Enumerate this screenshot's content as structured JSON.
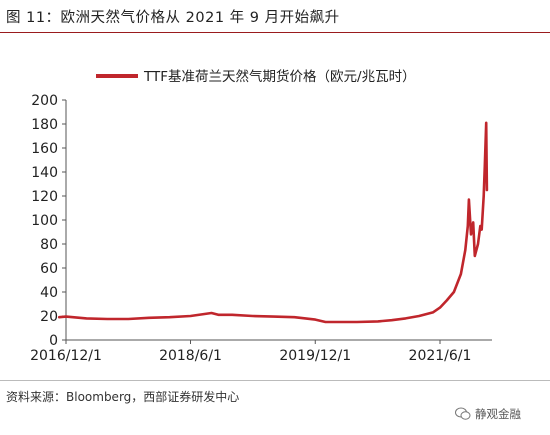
{
  "figure_title": "图 11：欧洲天然气价格从 2021 年 9 月开始飙升",
  "source": "资料来源：Bloomberg，西部证券研发中心",
  "watermark": "静观金融",
  "chart_data": {
    "type": "line",
    "title": "",
    "xlabel": "",
    "ylabel": "",
    "ylim": [
      0,
      200
    ],
    "yticks": [
      0,
      20,
      40,
      60,
      80,
      100,
      120,
      140,
      160,
      180,
      200
    ],
    "xticks": [
      "2016/12/1",
      "2018/6/1",
      "2019/12/1",
      "2021/6/1"
    ],
    "grid": false,
    "legend_position": "top-center",
    "series_color": "#c0262c",
    "series": [
      {
        "name": "TTF基准荷兰天然气期货价格（欧元/兆瓦时）",
        "points": [
          [
            "2016/11/1",
            19
          ],
          [
            "2016/12/1",
            19.5
          ],
          [
            "2017/3/1",
            18
          ],
          [
            "2017/6/1",
            17.5
          ],
          [
            "2017/9/1",
            17.5
          ],
          [
            "2017/12/1",
            18.5
          ],
          [
            "2018/3/1",
            19
          ],
          [
            "2018/6/1",
            20
          ],
          [
            "2018/9/1",
            22.5
          ],
          [
            "2018/10/1",
            21
          ],
          [
            "2018/12/1",
            21
          ],
          [
            "2019/3/1",
            20
          ],
          [
            "2019/6/1",
            19.5
          ],
          [
            "2019/9/1",
            19
          ],
          [
            "2019/12/1",
            17
          ],
          [
            "2020/1/15",
            15
          ],
          [
            "2020/4/1",
            15
          ],
          [
            "2020/6/1",
            15
          ],
          [
            "2020/9/1",
            15.5
          ],
          [
            "2020/11/1",
            16.5
          ],
          [
            "2021/1/1",
            18
          ],
          [
            "2021/3/1",
            20
          ],
          [
            "2021/5/1",
            23
          ],
          [
            "2021/6/1",
            27
          ],
          [
            "2021/7/1",
            33
          ],
          [
            "2021/8/1",
            40
          ],
          [
            "2021/9/1",
            55
          ],
          [
            "2021/9/20",
            75
          ],
          [
            "2021/10/1",
            95
          ],
          [
            "2021/10/6",
            117
          ],
          [
            "2021/10/15",
            88
          ],
          [
            "2021/10/25",
            98
          ],
          [
            "2021/11/1",
            70
          ],
          [
            "2021/11/15",
            80
          ],
          [
            "2021/11/25",
            95
          ],
          [
            "2021/12/1",
            92
          ],
          [
            "2021/12/10",
            120
          ],
          [
            "2021/12/15",
            145
          ],
          [
            "2021/12/21",
            181
          ],
          [
            "2021/12/24",
            125
          ]
        ]
      }
    ]
  }
}
